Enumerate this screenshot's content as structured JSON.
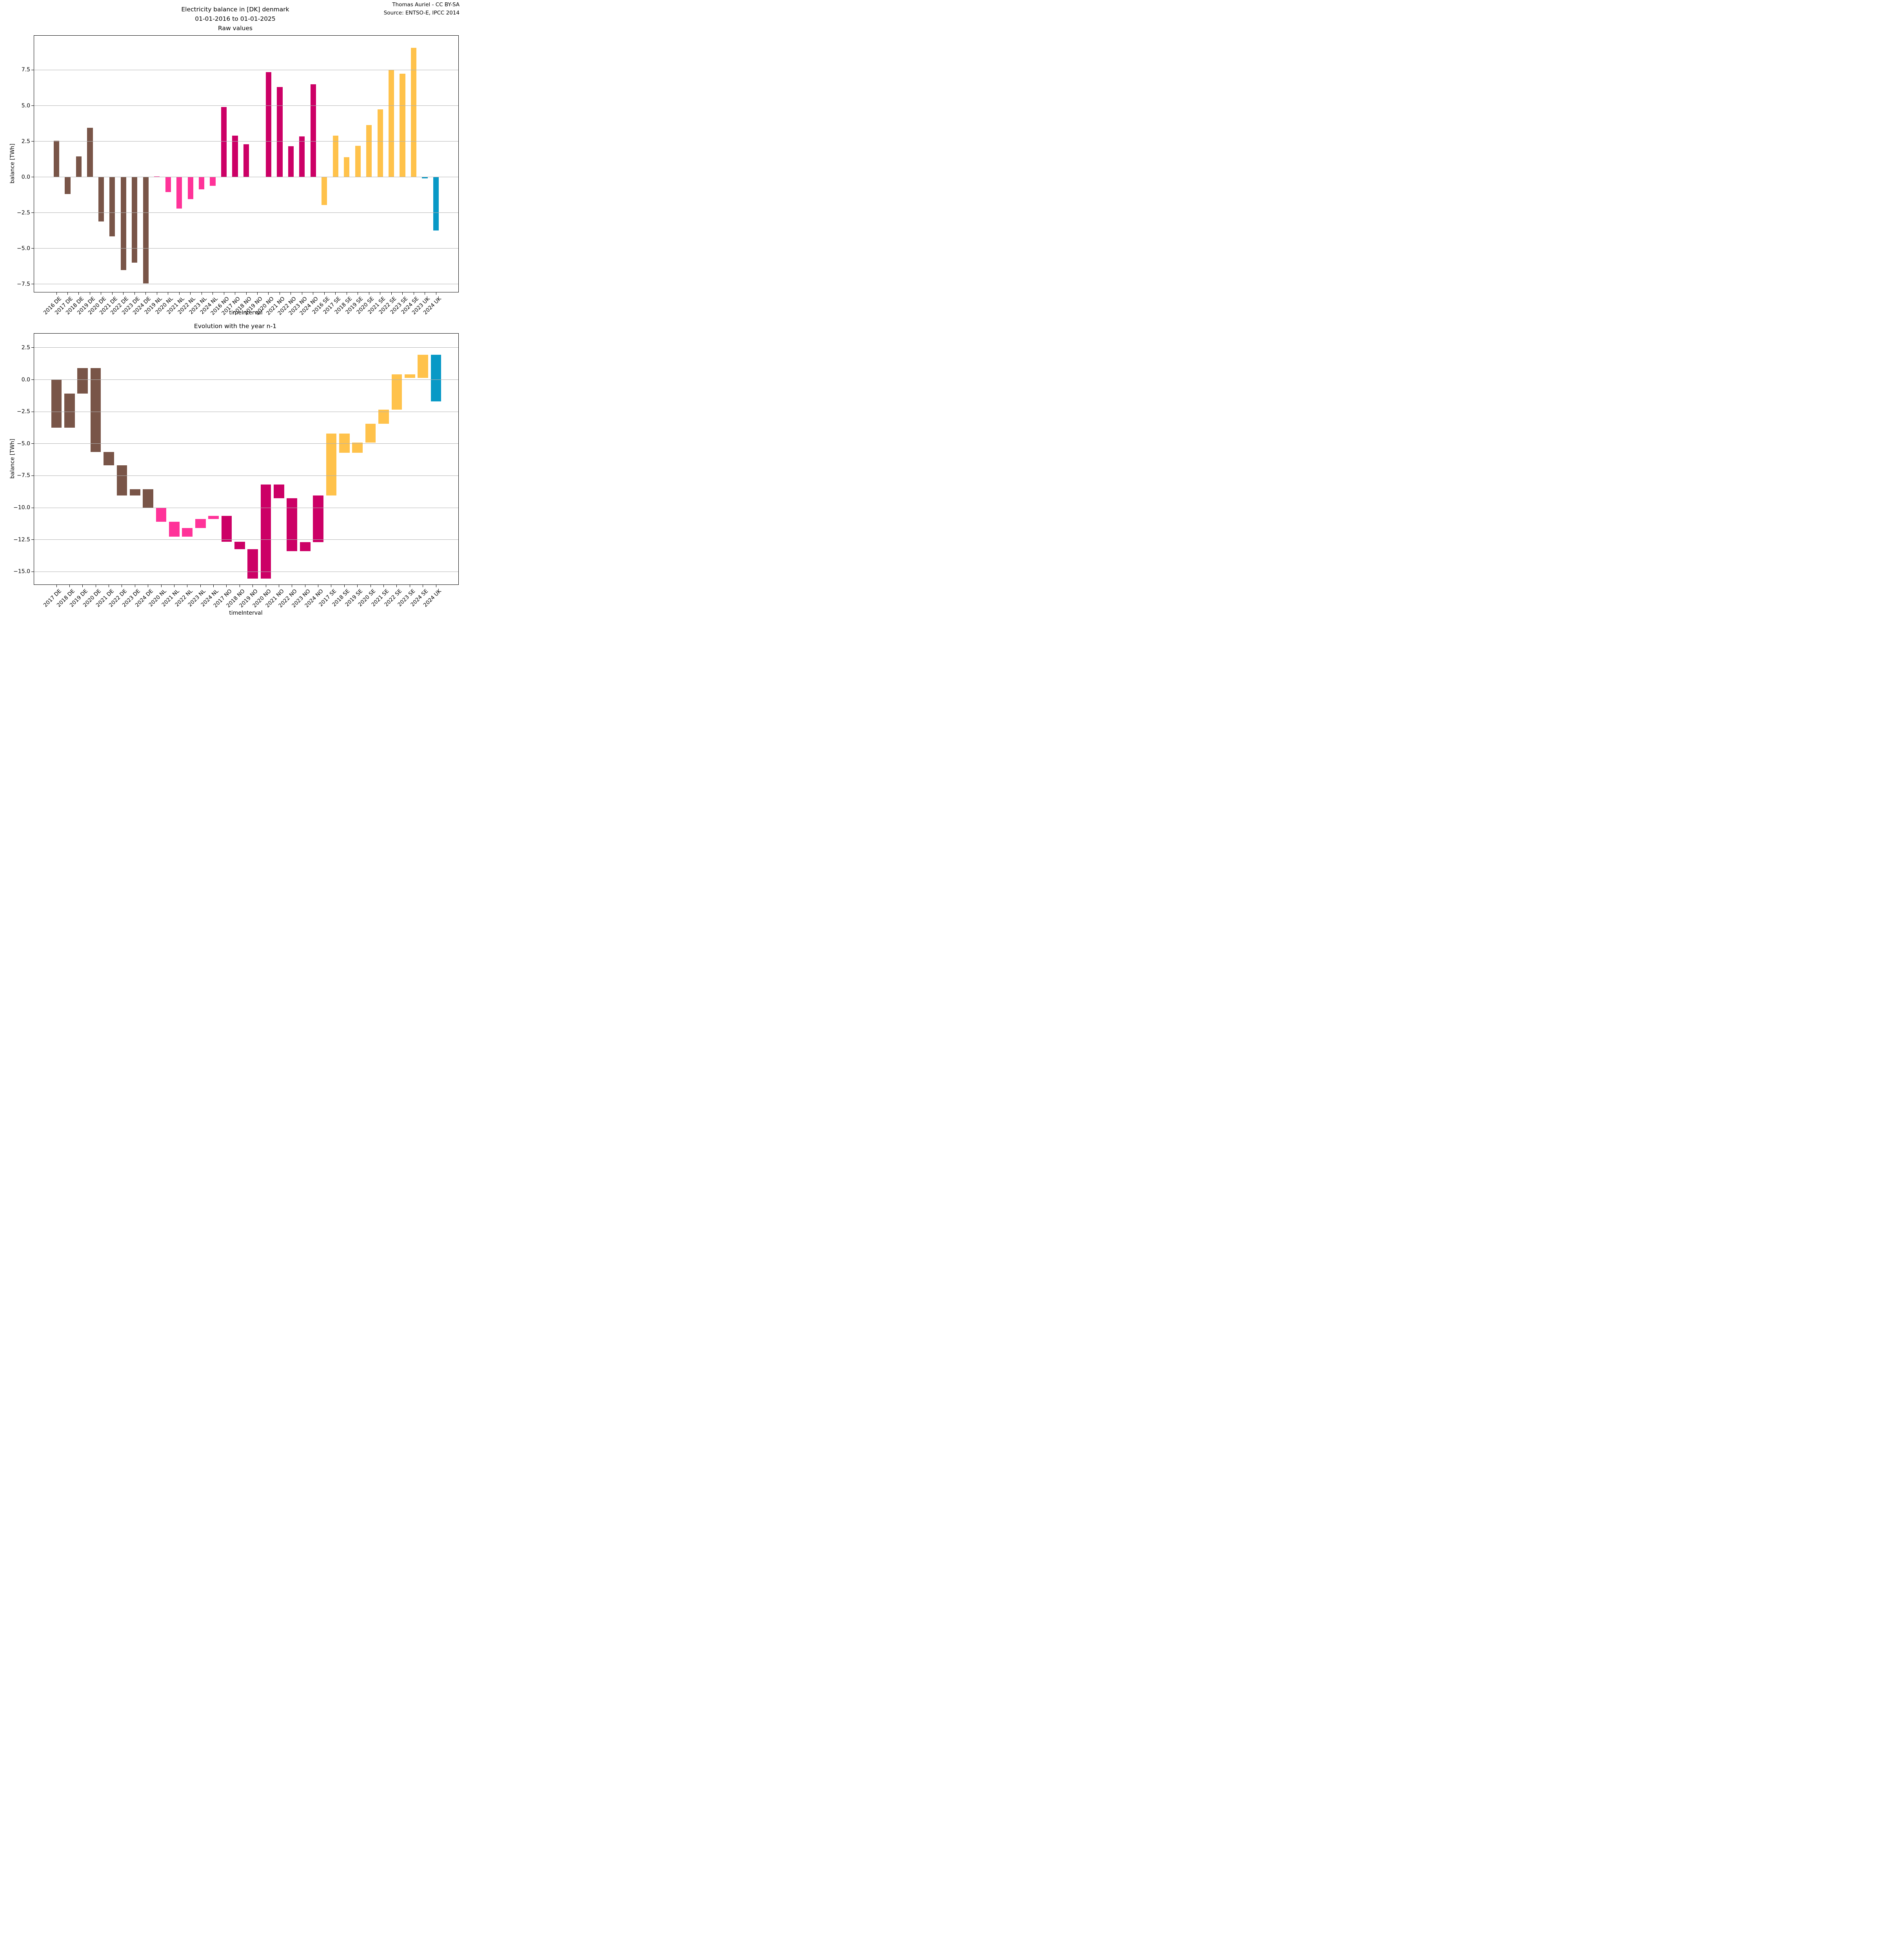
{
  "attribution": {
    "line1": "Thomas Auriel - CC BY-SA",
    "line2": "Source: ENTSO-E, IPCC 2014"
  },
  "palette": {
    "DE": "#795548",
    "NL": "#FF3399",
    "NO": "#CC0066",
    "SE": "#FFC24B",
    "UK": "#0899C6"
  },
  "chart_data": [
    {
      "type": "bar",
      "title_lines": [
        "Electricity balance in [DK] denmark",
        "01-01-2016 to 01-01-2025",
        "Raw values"
      ],
      "xlabel": "timeInterval",
      "ylabel": "balance [TWh]",
      "ylim": [
        -8.05,
        9.9
      ],
      "grid": true,
      "legend": false,
      "ytick_vals": [
        7.5,
        5.0,
        2.5,
        0.0,
        -2.5,
        -5.0,
        -7.5
      ],
      "ytick_labels": [
        "7.5",
        "5.0",
        "2.5",
        "0.0",
        "−2.5",
        "−5.0",
        "−7.5"
      ],
      "categories": [
        "2016 DE",
        "2017 DE",
        "2018 DE",
        "2019 DE",
        "2020 DE",
        "2021 DE",
        "2022 DE",
        "2023 DE",
        "2024 DE",
        "2019 NL",
        "2020 NL",
        "2021 NL",
        "2022 NL",
        "2023 NL",
        "2024 NL",
        "2016 NO",
        "2017 NO",
        "2018 NO",
        "2019 NO",
        "2020 NO",
        "2021 NO",
        "2022 NO",
        "2023 NO",
        "2024 NO",
        "2016 SE",
        "2017 SE",
        "2018 SE",
        "2019 SE",
        "2020 SE",
        "2021 SE",
        "2022 SE",
        "2023 SE",
        "2024 SE",
        "2023 UK",
        "2024 UK"
      ],
      "values": [
        2.55,
        -1.2,
        1.45,
        3.45,
        -3.1,
        -4.15,
        -6.5,
        -6.0,
        -7.45,
        0.05,
        -1.05,
        -2.2,
        -1.55,
        -0.85,
        -0.6,
        4.9,
        2.9,
        2.3,
        0.0,
        7.35,
        6.3,
        2.15,
        2.85,
        6.5,
        -1.95,
        2.9,
        1.4,
        2.2,
        3.65,
        4.75,
        7.5,
        7.25,
        9.05,
        -0.1,
        -3.75
      ]
    },
    {
      "type": "waterfall-bar",
      "title_lines": [
        "Evolution with the year n-1"
      ],
      "xlabel": "timeInterval",
      "ylabel": "balance [TWh]",
      "ylim": [
        -16.0,
        3.6
      ],
      "grid": true,
      "legend": false,
      "ytick_vals": [
        2.5,
        0.0,
        -2.5,
        -5.0,
        -7.5,
        -10.0,
        -12.5,
        -15.0
      ],
      "ytick_labels": [
        "2.5",
        "0.0",
        "−2.5",
        "−5.0",
        "−7.5",
        "−10.0",
        "−12.5",
        "−15.0"
      ],
      "categories": [
        "2017 DE",
        "2018 DE",
        "2019 DE",
        "2020 DE",
        "2021 DE",
        "2022 DE",
        "2023 DE",
        "2024 DE",
        "2020 NL",
        "2021 NL",
        "2022 NL",
        "2023 NL",
        "2024 NL",
        "2017 NO",
        "2018 NO",
        "2019 NO",
        "2020 NO",
        "2021 NO",
        "2022 NO",
        "2023 NO",
        "2024 NO",
        "2017 SE",
        "2018 SE",
        "2019 SE",
        "2020 SE",
        "2021 SE",
        "2022 SE",
        "2023 SE",
        "2024 SE",
        "2024 UK"
      ],
      "spans": [
        [
          0,
          -3.75
        ],
        [
          -3.75,
          -1.1
        ],
        [
          -1.1,
          0.9
        ],
        [
          0.9,
          -5.65
        ],
        [
          -5.65,
          -6.7
        ],
        [
          -6.7,
          -9.05
        ],
        [
          -9.05,
          -8.55
        ],
        [
          -8.55,
          -10.0
        ],
        [
          -10.0,
          -11.1
        ],
        [
          -11.1,
          -12.25
        ],
        [
          -12.25,
          -11.6
        ],
        [
          -11.6,
          -10.9
        ],
        [
          -10.9,
          -10.65
        ],
        [
          -10.65,
          -12.65
        ],
        [
          -12.65,
          -13.25
        ],
        [
          -13.25,
          -15.55
        ],
        [
          -15.55,
          -8.2
        ],
        [
          -8.2,
          -9.25
        ],
        [
          -9.25,
          -13.4
        ],
        [
          -13.4,
          -12.7
        ],
        [
          -12.7,
          -9.05
        ],
        [
          -9.05,
          -4.2
        ],
        [
          -4.2,
          -5.7
        ],
        [
          -5.7,
          -4.9
        ],
        [
          -4.9,
          -3.45
        ],
        [
          -3.45,
          -2.35
        ],
        [
          -2.35,
          0.4
        ],
        [
          0.4,
          0.15
        ],
        [
          0.15,
          1.95
        ],
        [
          1.95,
          -1.7
        ]
      ]
    }
  ]
}
